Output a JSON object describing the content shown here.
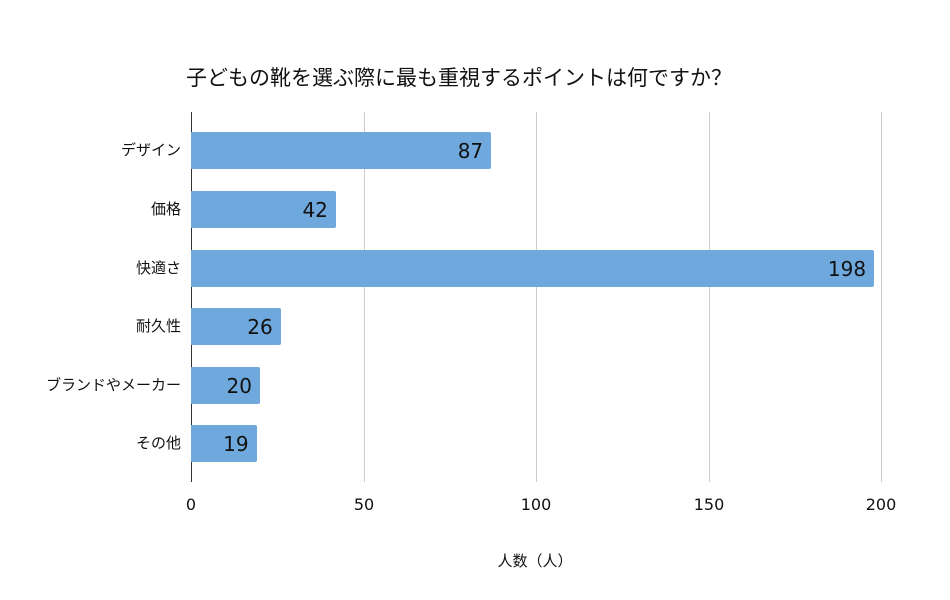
{
  "chart_data": {
    "type": "bar",
    "orientation": "horizontal",
    "title": "子どもの靴を選ぶ際に最も重視するポイントは何ですか？",
    "xlabel": "人数（人）",
    "ylabel": "",
    "categories": [
      "デザイン",
      "価格",
      "快適さ",
      "耐久性",
      "ブランドやメーカー",
      "その他"
    ],
    "values": [
      87,
      42,
      198,
      26,
      20,
      19
    ],
    "xlim": [
      0,
      200
    ],
    "xticks": [
      0,
      50,
      100,
      150,
      200
    ],
    "grid": true,
    "legend": null,
    "data_labels": true,
    "bar_color": "#6fa8dc"
  },
  "tick_labels": [
    "0",
    "50",
    "100",
    "150",
    "200"
  ],
  "bar_labels": [
    "87",
    "42",
    "198",
    "26",
    "20",
    "19"
  ],
  "colors": {
    "bar": "#6fa8dc",
    "grid": "#cccccc",
    "axis": "#333333"
  }
}
